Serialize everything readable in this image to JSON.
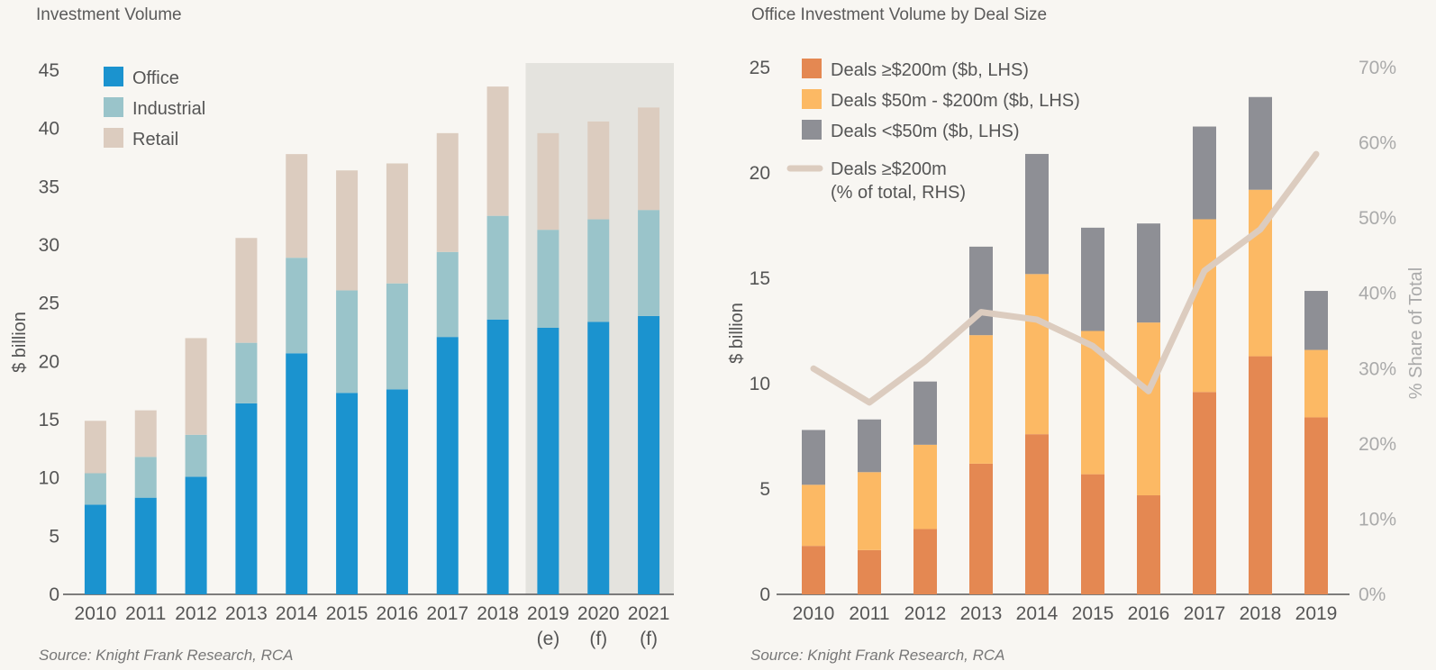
{
  "chart_data": [
    {
      "type": "bar",
      "stacked": true,
      "title": "Investment Volume",
      "ylabel": "$ billion",
      "ylim": [
        0,
        45
      ],
      "yticks": [
        0,
        5,
        10,
        15,
        20,
        25,
        30,
        35,
        40,
        45
      ],
      "categories": [
        "2010",
        "2011",
        "2012",
        "2013",
        "2014",
        "2015",
        "2016",
        "2017",
        "2018",
        "2019",
        "2020",
        "2021"
      ],
      "category_sublabels": [
        "",
        "",
        "",
        "",
        "",
        "",
        "",
        "",
        "",
        "(e)",
        "(f)",
        "(f)"
      ],
      "shaded_categories": [
        "2019",
        "2020",
        "2021"
      ],
      "series": [
        {
          "name": "Office",
          "color": "#1b93cf",
          "values": [
            7.7,
            8.3,
            10.1,
            16.4,
            20.7,
            17.3,
            17.6,
            22.1,
            23.6,
            22.9,
            23.4,
            23.9
          ]
        },
        {
          "name": "Industrial",
          "color": "#9ac4ca",
          "values": [
            2.7,
            3.5,
            3.6,
            5.2,
            8.2,
            8.8,
            9.1,
            7.3,
            8.9,
            8.4,
            8.8,
            9.1
          ]
        },
        {
          "name": "Retail",
          "color": "#dcccbf",
          "values": [
            4.5,
            4.0,
            8.3,
            9.0,
            8.9,
            10.3,
            10.3,
            10.2,
            11.1,
            8.3,
            8.4,
            8.8
          ]
        }
      ],
      "legend_position": "top-left",
      "source": "Source: Knight Frank Research, RCA"
    },
    {
      "type": "bar",
      "stacked": true,
      "title": "Office Investment Volume by Deal Size",
      "ylabel": "$ billion",
      "ylabel_right": "% Share of Total",
      "ylim": [
        0,
        25
      ],
      "yticks": [
        0,
        5,
        10,
        15,
        20,
        25
      ],
      "ylim_right": [
        0,
        70
      ],
      "yticks_right": [
        "0%",
        "10%",
        "20%",
        "30%",
        "40%",
        "50%",
        "60%",
        "70%"
      ],
      "categories": [
        "2010",
        "2011",
        "2012",
        "2013",
        "2014",
        "2015",
        "2016",
        "2017",
        "2018",
        "2019"
      ],
      "series": [
        {
          "name": "Deals ≥$200m ($b, LHS)",
          "color": "#e48852",
          "values": [
            2.3,
            2.1,
            3.1,
            6.2,
            7.6,
            5.7,
            4.7,
            9.6,
            11.3,
            8.4
          ]
        },
        {
          "name": "Deals $50m - $200m ($b, LHS)",
          "color": "#fcb964",
          "values": [
            2.9,
            3.7,
            4.0,
            6.1,
            7.6,
            6.8,
            8.2,
            8.2,
            7.9,
            3.2
          ]
        },
        {
          "name": "Deals <$50m ($b, LHS)",
          "color": "#8e8f95",
          "values": [
            2.6,
            2.5,
            3.0,
            4.2,
            5.7,
            4.9,
            4.7,
            4.4,
            4.4,
            2.8
          ]
        }
      ],
      "line_series": {
        "name_line1": "Deals ≥$200m",
        "name_line2": "(% of total, RHS)",
        "color": "#dcccbf",
        "values": [
          30,
          25.5,
          31,
          37.5,
          36.5,
          33,
          27,
          43,
          48.5,
          58.5
        ]
      },
      "legend_position": "top-left",
      "source": "Source: Knight Frank Research, RCA"
    }
  ]
}
